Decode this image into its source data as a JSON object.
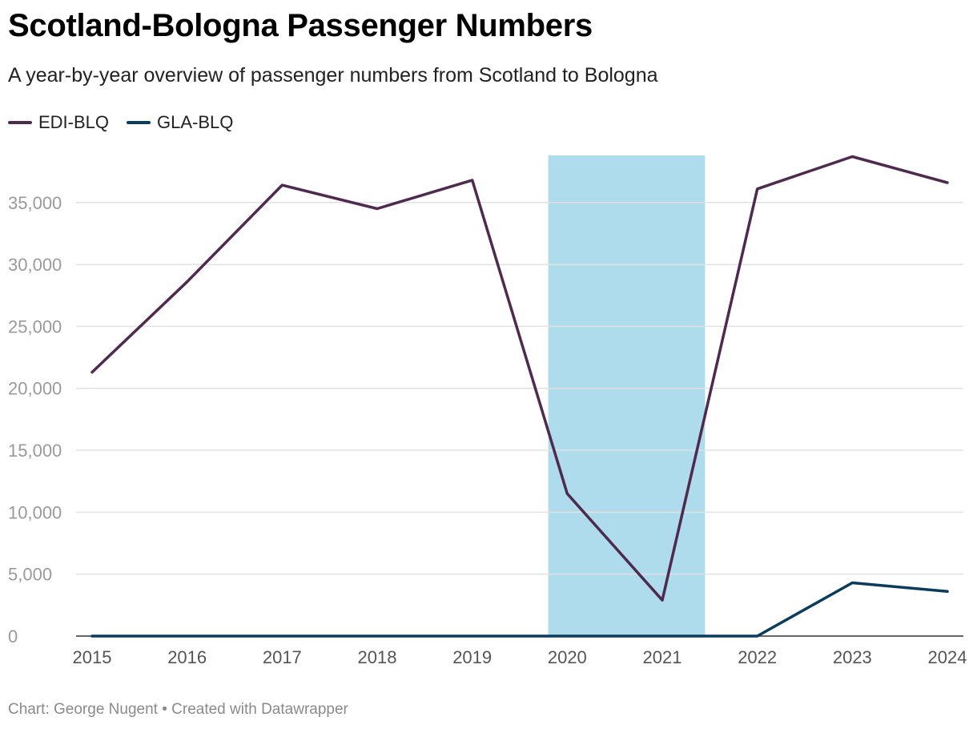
{
  "chart_data": {
    "type": "line",
    "title": "Scotland-Bologna Passenger Numbers",
    "subtitle": "A year-by-year overview of passenger numbers from Scotland to Bologna",
    "xlabel": "",
    "ylabel": "",
    "x": [
      "2015",
      "2016",
      "2017",
      "2018",
      "2019",
      "2020",
      "2021",
      "2022",
      "2023",
      "2024"
    ],
    "ylim": [
      0,
      38800
    ],
    "yticks": [
      0,
      5000,
      10000,
      15000,
      20000,
      25000,
      30000,
      35000
    ],
    "ytick_labels": [
      "0",
      "5,000",
      "10,000",
      "15,000",
      "20,000",
      "25,000",
      "30,000",
      "35,000"
    ],
    "grid": true,
    "legend_position": "top-left",
    "series": [
      {
        "name": "EDI-BLQ",
        "color": "#4f2a4f",
        "values": [
          21300,
          28600,
          36400,
          34500,
          36800,
          11500,
          2900,
          36100,
          38700,
          36600
        ]
      },
      {
        "name": "GLA-BLQ",
        "color": "#0b3c5d",
        "values": [
          0,
          0,
          0,
          0,
          0,
          0,
          0,
          0,
          4300,
          3600
        ]
      }
    ],
    "highlight": {
      "from": 4.8,
      "to": 6.45,
      "color": "#aedcec",
      "note": "shaded period 2020-2021"
    },
    "footer": "Chart: George Nugent • Created with Datawrapper"
  }
}
